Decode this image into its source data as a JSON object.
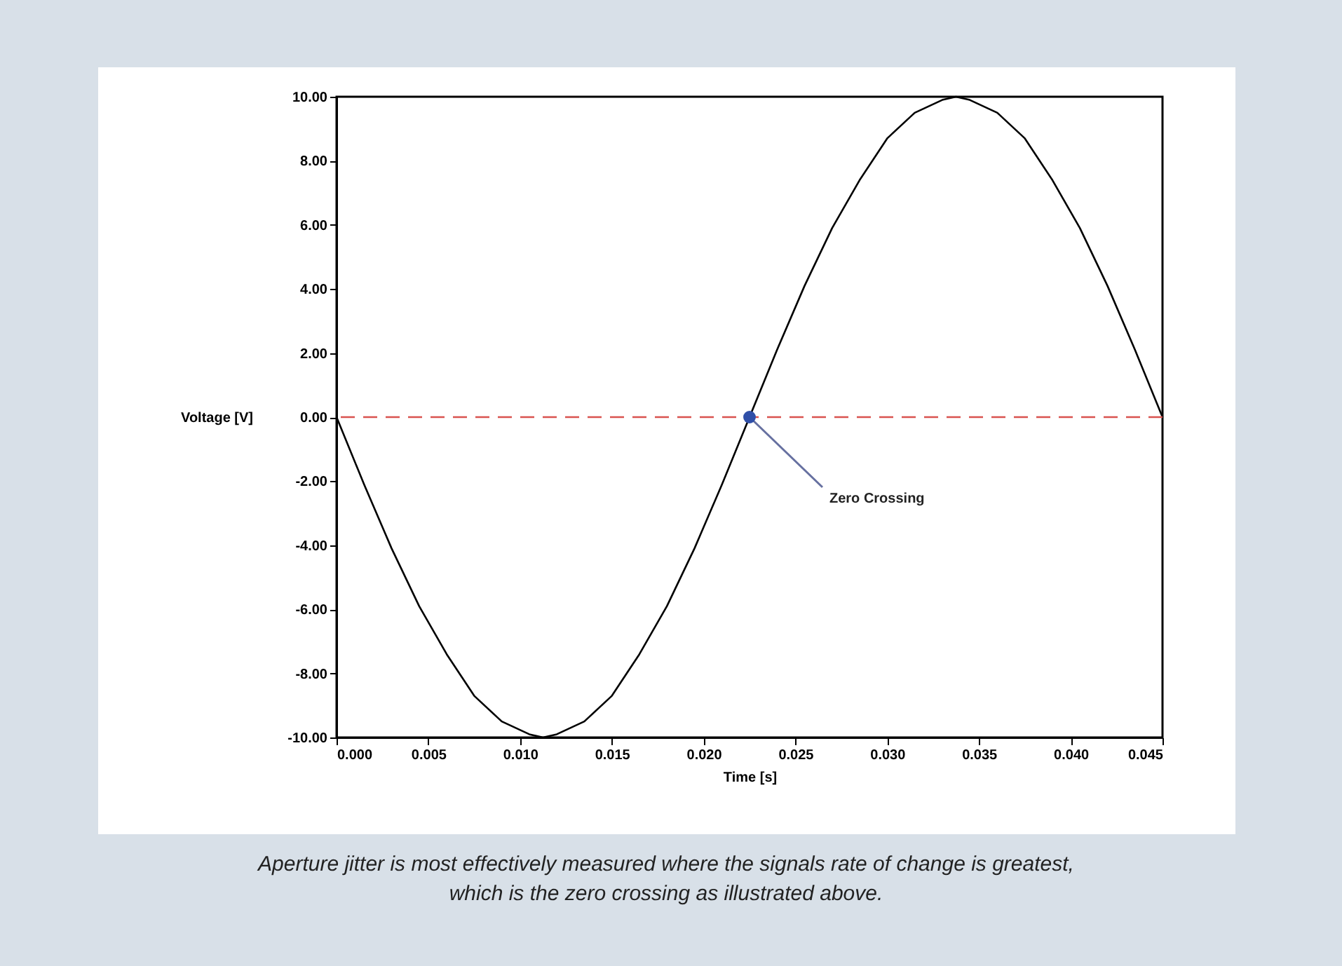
{
  "chart_data": {
    "type": "line",
    "xlabel": "Time [s]",
    "ylabel": "Voltage [V]",
    "series": [
      {
        "color": "#000000",
        "x": [
          0,
          0.0015,
          0.003,
          0.0045,
          0.006,
          0.0075,
          0.009,
          0.0105,
          0.01125,
          0.012,
          0.0135,
          0.015,
          0.0165,
          0.018,
          0.0195,
          0.021,
          0.0225,
          0.024,
          0.0255,
          0.027,
          0.0285,
          0.03,
          0.0315,
          0.033,
          0.03375,
          0.0345,
          0.036,
          0.0375,
          0.039,
          0.0405,
          0.042,
          0.0435,
          0.045
        ],
        "values": [
          0,
          -2.1,
          -4.1,
          -5.9,
          -7.4,
          -8.7,
          -9.5,
          -9.9,
          -10,
          -9.9,
          -9.5,
          -8.7,
          -7.4,
          -5.9,
          -4.1,
          -2.1,
          0,
          2.1,
          4.1,
          5.9,
          7.4,
          8.7,
          9.5,
          9.9,
          10,
          9.9,
          9.5,
          8.7,
          7.4,
          5.9,
          4.1,
          2.1,
          0
        ]
      },
      {
        "type": "scatter",
        "color": "#2f4fa8",
        "x": [
          0.0225
        ],
        "values": [
          0
        ]
      }
    ],
    "xlim": [
      0,
      0.045
    ],
    "xticks": [
      {
        "value": 0,
        "label": "0.000"
      },
      {
        "value": 0.005,
        "label": "0.005"
      },
      {
        "value": 0.01,
        "label": "0.010"
      },
      {
        "value": 0.015,
        "label": "0.015"
      },
      {
        "value": 0.02,
        "label": "0.020"
      },
      {
        "value": 0.025,
        "label": "0.025"
      },
      {
        "value": 0.03,
        "label": "0.030"
      },
      {
        "value": 0.035,
        "label": "0.035"
      },
      {
        "value": 0.04,
        "label": "0.040"
      },
      {
        "value": 0.045,
        "label": "0.045"
      }
    ],
    "ylim": [
      -10,
      10
    ],
    "yticks": [
      {
        "value": -10,
        "label": "-10.00"
      },
      {
        "value": -8,
        "label": "-8.00"
      },
      {
        "value": -6,
        "label": "-6.00"
      },
      {
        "value": -4,
        "label": "-4.00"
      },
      {
        "value": -2,
        "label": "-2.00"
      },
      {
        "value": 0,
        "label": "0.00"
      },
      {
        "value": 2,
        "label": "2.00"
      },
      {
        "value": 4,
        "label": "4.00"
      },
      {
        "value": 6,
        "label": "6.00"
      },
      {
        "value": 8,
        "label": "8.00"
      },
      {
        "value": 10,
        "label": "10.00"
      }
    ],
    "ref_lines": [
      {
        "axis": "y",
        "value": 0,
        "color": "#d9534f",
        "line_style": "dashed"
      }
    ],
    "annotations": [
      {
        "text": "Zero Crossing",
        "x": 0.0225,
        "y": 0
      },
      "Aperture jitter is most effectively measured where the signals rate of change is greatest, which is the zero crossing as illustrated above."
    ],
    "grid": false
  }
}
